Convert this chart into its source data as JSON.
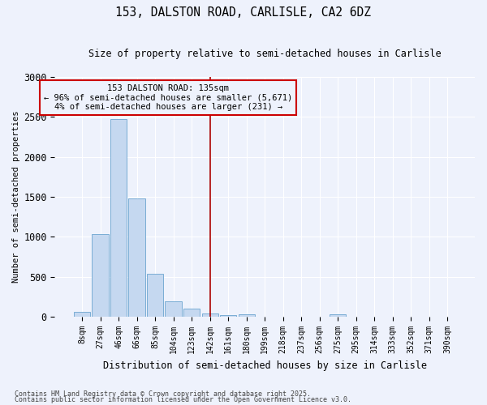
{
  "title1": "153, DALSTON ROAD, CARLISLE, CA2 6DZ",
  "title2": "Size of property relative to semi-detached houses in Carlisle",
  "xlabel": "Distribution of semi-detached houses by size in Carlisle",
  "ylabel": "Number of semi-detached properties",
  "categories": [
    "8sqm",
    "27sqm",
    "46sqm",
    "66sqm",
    "85sqm",
    "104sqm",
    "123sqm",
    "142sqm",
    "161sqm",
    "180sqm",
    "199sqm",
    "218sqm",
    "237sqm",
    "256sqm",
    "275sqm",
    "295sqm",
    "314sqm",
    "333sqm",
    "352sqm",
    "371sqm",
    "390sqm"
  ],
  "values": [
    60,
    1040,
    2470,
    1480,
    540,
    195,
    100,
    45,
    25,
    30,
    0,
    0,
    0,
    0,
    30,
    0,
    0,
    0,
    0,
    0,
    0
  ],
  "bar_color": "#c5d8f0",
  "bar_edge_color": "#7aadd4",
  "vline_x_index": 7,
  "vline_color": "#aa0000",
  "annotation_title": "153 DALSTON ROAD: 135sqm",
  "annotation_line1": "← 96% of semi-detached houses are smaller (5,671)",
  "annotation_line2": "4% of semi-detached houses are larger (231) →",
  "annotation_box_color": "#cc0000",
  "ylim": [
    0,
    3000
  ],
  "yticks": [
    0,
    500,
    1000,
    1500,
    2000,
    2500,
    3000
  ],
  "footer1": "Contains HM Land Registry data © Crown copyright and database right 2025.",
  "footer2": "Contains public sector information licensed under the Open Government Licence v3.0.",
  "bg_color": "#eef2fc",
  "grid_color": "#ffffff"
}
